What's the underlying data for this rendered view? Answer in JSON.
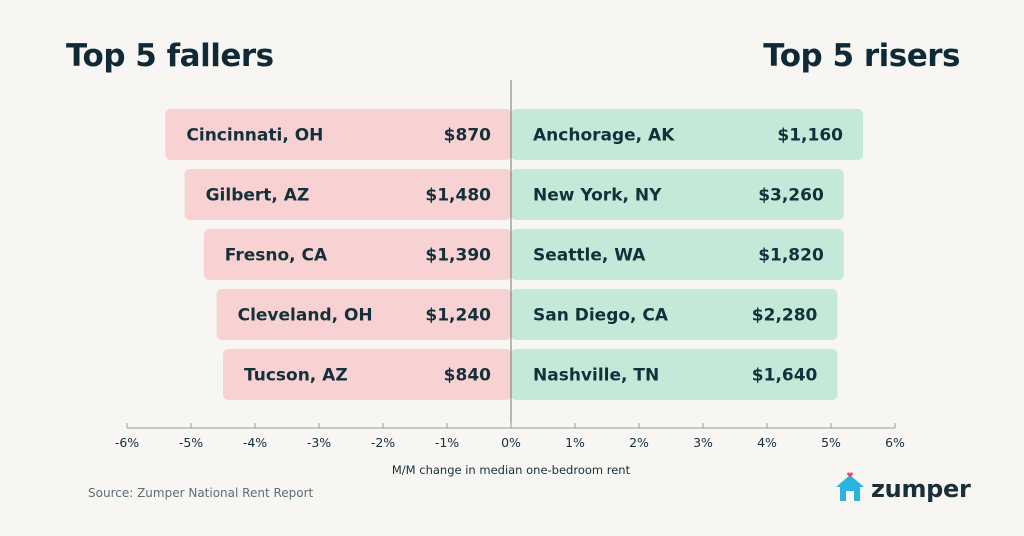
{
  "titles": {
    "left": "Top 5 fallers",
    "right": "Top 5 risers"
  },
  "source": "Source: Zumper National Rent Report",
  "logo": {
    "text": "zumper",
    "icon": "house-heart-icon",
    "color": "#2bb3e0",
    "heart_color": "#e8476d"
  },
  "colors": {
    "fallers_bar": "#f8d2d2",
    "risers_bar": "#c4e9d9",
    "text": "#14303b",
    "axis": "#777777"
  },
  "chart_data": {
    "type": "bar",
    "orientation": "horizontal",
    "xlabel": "M/M change in median one-bedroom rent",
    "xlim": [
      -6,
      6
    ],
    "xticks": [
      "-6%",
      "-5%",
      "-4%",
      "-3%",
      "-2%",
      "-1%",
      "0%",
      "1%",
      "2%",
      "3%",
      "4%",
      "5%",
      "6%"
    ],
    "tick_values": [
      -6,
      -5,
      -4,
      -3,
      -2,
      -1,
      0,
      1,
      2,
      3,
      4,
      5,
      6
    ],
    "fallers": [
      {
        "city": "Cincinnati, OH",
        "rent": "$870",
        "change": -5.4
      },
      {
        "city": "Gilbert, AZ",
        "rent": "$1,480",
        "change": -5.1
      },
      {
        "city": "Fresno, CA",
        "rent": "$1,390",
        "change": -4.8
      },
      {
        "city": "Cleveland, OH",
        "rent": "$1,240",
        "change": -4.6
      },
      {
        "city": "Tucson, AZ",
        "rent": "$840",
        "change": -4.5
      }
    ],
    "risers": [
      {
        "city": "Anchorage, AK",
        "rent": "$1,160",
        "change": 5.5
      },
      {
        "city": "New York, NY",
        "rent": "$3,260",
        "change": 5.2
      },
      {
        "city": "Seattle, WA",
        "rent": "$1,820",
        "change": 5.2
      },
      {
        "city": "San Diego, CA",
        "rent": "$2,280",
        "change": 5.1
      },
      {
        "city": "Nashville, TN",
        "rent": "$1,640",
        "change": 5.1
      }
    ]
  }
}
